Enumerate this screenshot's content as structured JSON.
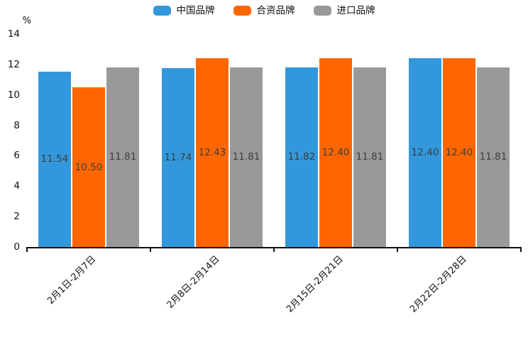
{
  "chart_data": {
    "type": "bar",
    "title": "",
    "ylabel": "%",
    "xlabel": "",
    "ylim": [
      0,
      14
    ],
    "yticks": [
      0,
      2,
      4,
      6,
      8,
      10,
      12,
      14
    ],
    "grid": false,
    "legend_position": "top-center",
    "value_labels_position": "inside-center",
    "value_label_color": "#3d3d3d",
    "axis_color": "#111111",
    "categories": [
      "2月1日-2月7日",
      "2月8日-2月14日",
      "2月15日-2月21日",
      "2月22日-2月28日"
    ],
    "series": [
      {
        "name": "中国品牌",
        "color": "#3398DB",
        "values": [
          11.54,
          11.74,
          11.82,
          12.4
        ]
      },
      {
        "name": "合资品牌",
        "color": "#FF6600",
        "values": [
          10.5,
          12.43,
          12.4,
          12.4
        ]
      },
      {
        "name": "进口品牌",
        "color": "#999999",
        "values": [
          11.81,
          11.81,
          11.81,
          11.81
        ]
      }
    ],
    "value_labels": [
      [
        "11.54",
        "10.50",
        "11.81"
      ],
      [
        "11.74",
        "12.43",
        "11.81"
      ],
      [
        "11.82",
        "12.40",
        "11.81"
      ],
      [
        "12.40",
        "12.40",
        "11.81"
      ]
    ]
  }
}
